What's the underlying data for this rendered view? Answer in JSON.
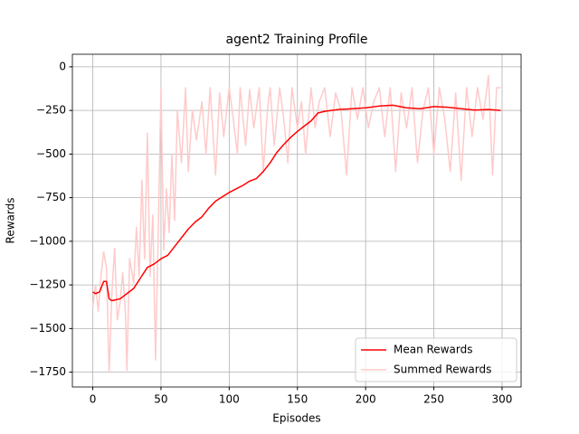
{
  "chart_data": {
    "type": "line",
    "title": "agent2 Training Profile",
    "x_label": "Episodes",
    "y_label": "Rewards",
    "xlim": [
      -14.95,
      313.95
    ],
    "ylim": [
      -1835,
      72
    ],
    "xticks": [
      0,
      50,
      100,
      150,
      200,
      250,
      300
    ],
    "yticks": [
      {
        "value": -1750,
        "label": "−1750"
      },
      {
        "value": -1500,
        "label": "−1500"
      },
      {
        "value": -1250,
        "label": "−1250"
      },
      {
        "value": -1000,
        "label": "−1000"
      },
      {
        "value": -750,
        "label": "−750"
      },
      {
        "value": -500,
        "label": "−500"
      },
      {
        "value": -250,
        "label": "−250"
      },
      0
    ],
    "grid": true,
    "legend": "lower right",
    "series": [
      {
        "name": "Mean Rewards",
        "color": "#ff0000",
        "x": [
          0,
          2,
          5,
          8,
          10,
          12,
          14,
          20,
          25,
          30,
          35,
          40,
          45,
          50,
          55,
          60,
          65,
          70,
          75,
          80,
          85,
          90,
          95,
          100,
          105,
          110,
          115,
          120,
          125,
          130,
          135,
          140,
          145,
          150,
          155,
          160,
          165,
          170,
          180,
          190,
          200,
          210,
          220,
          230,
          240,
          250,
          260,
          270,
          280,
          290,
          299
        ],
        "values": [
          -1290,
          -1300,
          -1290,
          -1230,
          -1230,
          -1330,
          -1340,
          -1330,
          -1300,
          -1270,
          -1210,
          -1150,
          -1130,
          -1100,
          -1080,
          -1030,
          -980,
          -930,
          -890,
          -860,
          -810,
          -770,
          -745,
          -720,
          -700,
          -680,
          -655,
          -640,
          -600,
          -550,
          -490,
          -445,
          -405,
          -370,
          -340,
          -310,
          -265,
          -255,
          -245,
          -240,
          -235,
          -225,
          -220,
          -235,
          -240,
          -228,
          -232,
          -240,
          -248,
          -245,
          -250
        ]
      },
      {
        "name": "Summed Rewards",
        "color": "#ffcaca",
        "x": [
          0,
          2,
          4,
          6,
          8,
          10,
          12,
          14,
          16,
          18,
          20,
          22,
          24,
          25,
          27,
          30,
          32,
          34,
          36,
          38,
          40,
          42,
          44,
          46,
          48,
          50,
          52,
          54,
          56,
          58,
          60,
          62,
          65,
          68,
          70,
          73,
          76,
          80,
          83,
          86,
          90,
          93,
          96,
          100,
          103,
          106,
          108,
          112,
          115,
          118,
          122,
          125,
          128,
          130,
          133,
          137,
          140,
          143,
          146,
          150,
          153,
          156,
          160,
          163,
          166,
          170,
          174,
          178,
          182,
          186,
          190,
          194,
          198,
          202,
          206,
          210,
          214,
          218,
          222,
          226,
          230,
          234,
          238,
          242,
          246,
          250,
          254,
          258,
          262,
          266,
          270,
          274,
          278,
          282,
          286,
          290,
          293,
          296,
          299
        ],
        "values": [
          -1380,
          -1250,
          -1400,
          -1200,
          -1060,
          -1150,
          -1750,
          -1300,
          -1040,
          -1450,
          -1350,
          -1180,
          -1420,
          -1740,
          -1100,
          -1240,
          -920,
          -1200,
          -650,
          -1100,
          -380,
          -1200,
          -850,
          -1680,
          -950,
          -120,
          -1050,
          -700,
          -950,
          -500,
          -880,
          -250,
          -550,
          -120,
          -600,
          -250,
          -420,
          -200,
          -500,
          -120,
          -620,
          -150,
          -400,
          -120,
          -300,
          -500,
          -120,
          -450,
          -130,
          -350,
          -120,
          -600,
          -250,
          -120,
          -450,
          -120,
          -300,
          -550,
          -120,
          -350,
          -200,
          -500,
          -120,
          -350,
          -200,
          -120,
          -400,
          -150,
          -250,
          -620,
          -120,
          -300,
          -120,
          -350,
          -200,
          -120,
          -400,
          -120,
          -600,
          -150,
          -350,
          -120,
          -550,
          -250,
          -120,
          -500,
          -120,
          -300,
          -600,
          -150,
          -650,
          -120,
          -400,
          -120,
          -300,
          -50,
          -620,
          -120,
          -120
        ]
      }
    ]
  }
}
